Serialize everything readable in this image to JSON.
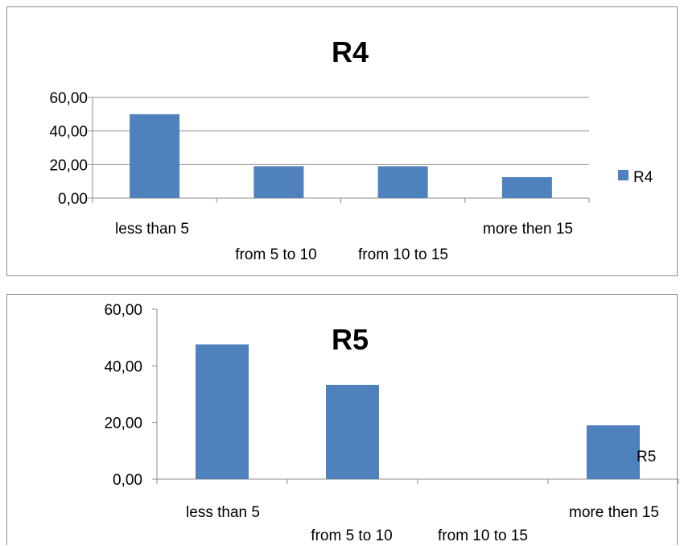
{
  "chart_data": [
    {
      "type": "bar",
      "title": "R4",
      "categories": [
        "less than 5",
        "from 5 to  10",
        "from 10 to  15",
        "more then  15"
      ],
      "series": [
        {
          "name": "R4",
          "values": [
            50.0,
            19.0,
            19.0,
            12.5
          ]
        }
      ],
      "ylim": [
        0,
        60
      ],
      "yticks": [
        "0,00",
        "20,00",
        "40,00",
        "60,00"
      ],
      "gridlines": true,
      "legend": "right",
      "bar_color": "#4f81bd"
    },
    {
      "type": "bar",
      "title": "R5",
      "categories": [
        "less than 5",
        "from 5 to  10",
        "from 10 to  15",
        "more then  15"
      ],
      "series": [
        {
          "name": "R5",
          "values": [
            47.6,
            33.3,
            0.0,
            19.0
          ]
        }
      ],
      "ylim": [
        0,
        60
      ],
      "yticks": [
        "0,00",
        "20,00",
        "40,00",
        "60,00"
      ],
      "gridlines": false,
      "legend": "right (overlapping plot)",
      "bar_color": "#4f81bd"
    }
  ]
}
